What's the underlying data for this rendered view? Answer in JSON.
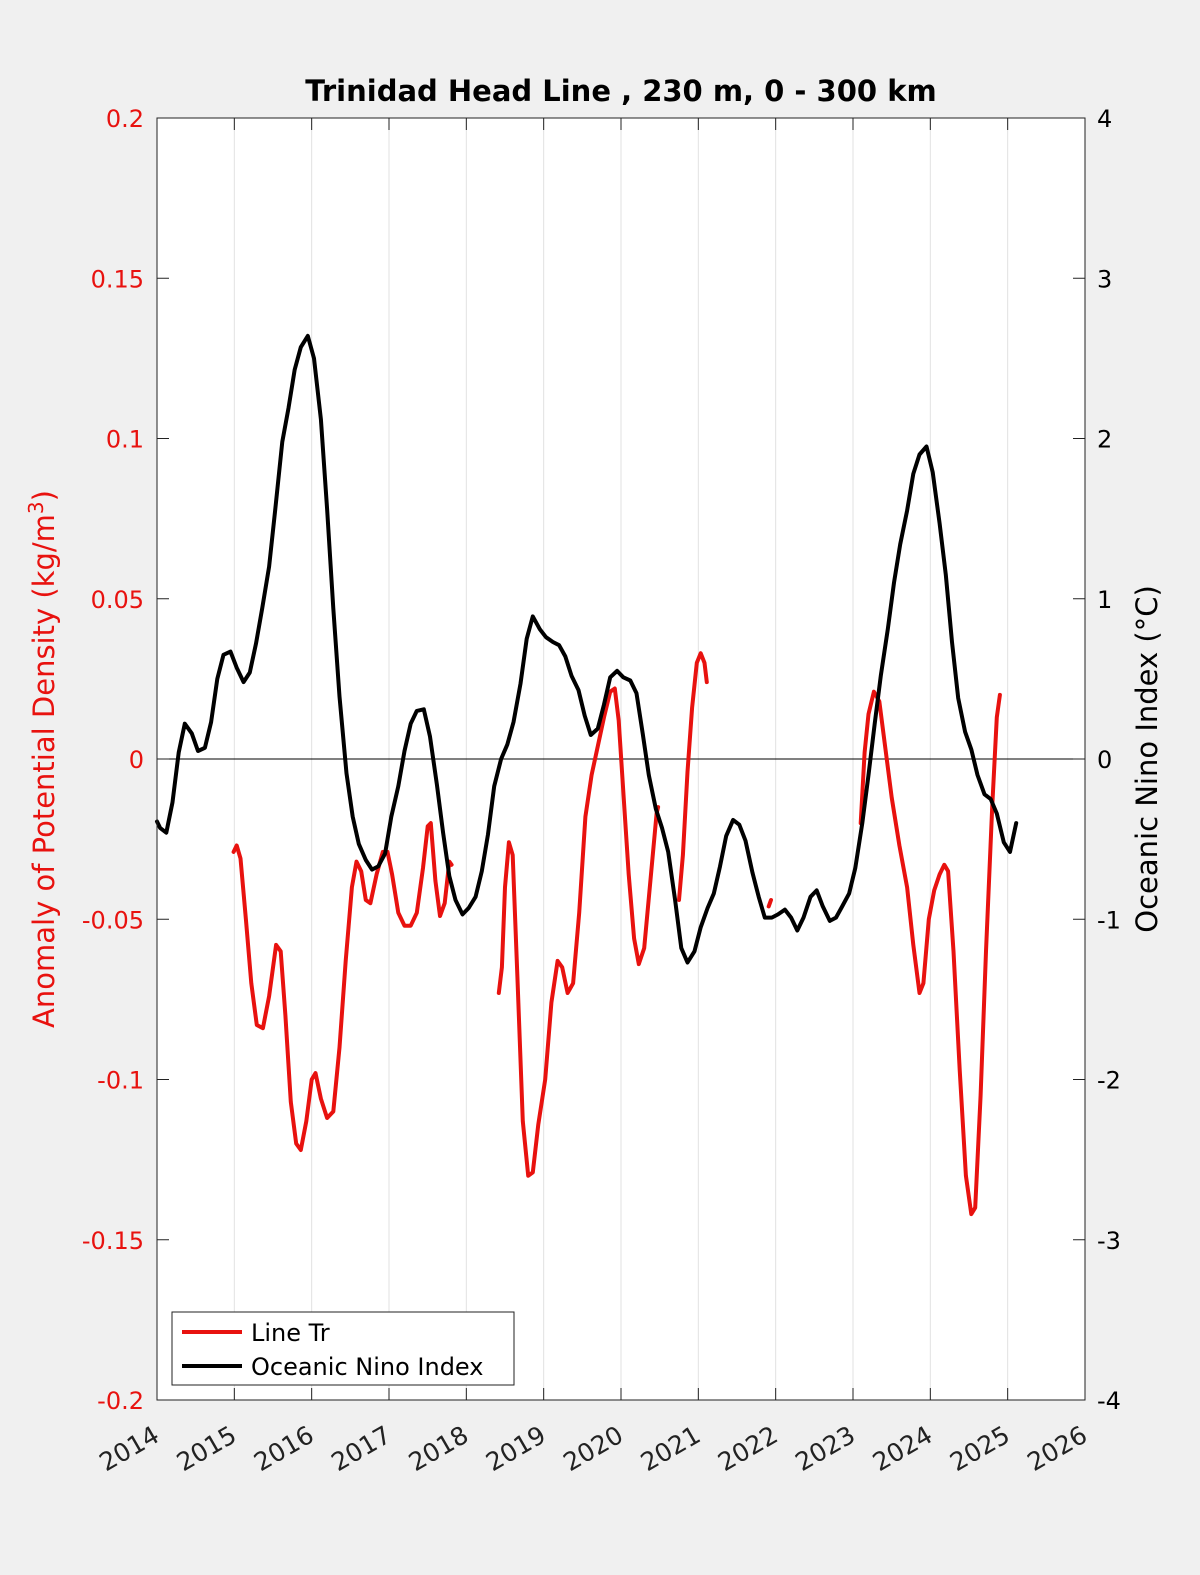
{
  "chart_data": {
    "type": "line",
    "title": "Trinidad Head Line , 230 m, 0 - 300 km",
    "xlabel": "",
    "ylabel_left": "Anomaly of Potential Density (kg/m",
    "ylabel_left_sup": "3",
    "ylabel_left_close": ")",
    "ylabel_right": "Oceanic Nino Index (°C)",
    "xlim": [
      2014,
      2026
    ],
    "ylim_left": [
      -0.2,
      0.2
    ],
    "ylim_right": [
      -4,
      4
    ],
    "x_ticks": [
      2014,
      2015,
      2016,
      2017,
      2018,
      2019,
      2020,
      2021,
      2022,
      2023,
      2024,
      2025,
      2026
    ],
    "x_tick_labels": [
      "2014",
      "2015",
      "2016",
      "2017",
      "2018",
      "2019",
      "2020",
      "2021",
      "2022",
      "2023",
      "2024",
      "2025",
      "2026"
    ],
    "y_left_ticks": [
      -0.2,
      -0.15,
      -0.1,
      -0.05,
      0,
      0.05,
      0.1,
      0.15,
      0.2
    ],
    "y_left_tick_labels": [
      "-0.2",
      "-0.15",
      "-0.1",
      "-0.05",
      "0",
      "0.05",
      "0.1",
      "0.15",
      "0.2"
    ],
    "y_right_ticks": [
      -4,
      -3,
      -2,
      -1,
      0,
      1,
      2,
      3,
      4
    ],
    "y_right_tick_labels": [
      "-4",
      "-3",
      "-2",
      "-1",
      "0",
      "1",
      "2",
      "3",
      "4"
    ],
    "grid": "vertical",
    "legend_position": "bottom-left",
    "colors": {
      "line_tr": "#e8120f",
      "oni": "#000000",
      "left_axis": "#e8120f",
      "right_axis": "#000000"
    },
    "series": [
      {
        "name": "Line Tr",
        "axis": "left",
        "segments": [
          [
            [
              2014.99,
              -0.029
            ],
            [
              2015.03,
              -0.027
            ],
            [
              2015.08,
              -0.031
            ],
            [
              2015.15,
              -0.05
            ],
            [
              2015.22,
              -0.07
            ],
            [
              2015.29,
              -0.083
            ],
            [
              2015.37,
              -0.084
            ],
            [
              2015.45,
              -0.074
            ],
            [
              2015.54,
              -0.058
            ],
            [
              2015.6,
              -0.06
            ],
            [
              2015.66,
              -0.08
            ],
            [
              2015.73,
              -0.107
            ],
            [
              2015.8,
              -0.12
            ],
            [
              2015.86,
              -0.122
            ],
            [
              2015.93,
              -0.113
            ],
            [
              2016.0,
              -0.1
            ],
            [
              2016.05,
              -0.098
            ],
            [
              2016.12,
              -0.106
            ],
            [
              2016.2,
              -0.112
            ],
            [
              2016.28,
              -0.11
            ],
            [
              2016.36,
              -0.09
            ],
            [
              2016.44,
              -0.063
            ],
            [
              2016.52,
              -0.04
            ],
            [
              2016.58,
              -0.032
            ],
            [
              2016.64,
              -0.035
            ],
            [
              2016.7,
              -0.044
            ],
            [
              2016.76,
              -0.045
            ],
            [
              2016.84,
              -0.036
            ],
            [
              2016.92,
              -0.029
            ],
            [
              2016.98,
              -0.029
            ],
            [
              2017.04,
              -0.036
            ],
            [
              2017.12,
              -0.048
            ],
            [
              2017.2,
              -0.052
            ],
            [
              2017.28,
              -0.052
            ],
            [
              2017.36,
              -0.048
            ],
            [
              2017.44,
              -0.034
            ],
            [
              2017.5,
              -0.021
            ],
            [
              2017.54,
              -0.02
            ],
            [
              2017.6,
              -0.038
            ],
            [
              2017.66,
              -0.049
            ],
            [
              2017.72,
              -0.045
            ],
            [
              2017.78,
              -0.032
            ],
            [
              2017.81,
              -0.033
            ]
          ],
          [
            [
              2018.42,
              -0.073
            ],
            [
              2018.46,
              -0.065
            ],
            [
              2018.5,
              -0.04
            ],
            [
              2018.55,
              -0.026
            ],
            [
              2018.6,
              -0.03
            ],
            [
              2018.66,
              -0.068
            ],
            [
              2018.73,
              -0.113
            ],
            [
              2018.8,
              -0.13
            ],
            [
              2018.86,
              -0.129
            ],
            [
              2018.93,
              -0.114
            ],
            [
              2019.02,
              -0.1
            ],
            [
              2019.1,
              -0.076
            ],
            [
              2019.18,
              -0.063
            ],
            [
              2019.24,
              -0.065
            ],
            [
              2019.31,
              -0.073
            ],
            [
              2019.38,
              -0.07
            ],
            [
              2019.46,
              -0.048
            ],
            [
              2019.54,
              -0.018
            ],
            [
              2019.62,
              -0.005
            ],
            [
              2019.7,
              0.004
            ],
            [
              2019.78,
              0.013
            ],
            [
              2019.86,
              0.021
            ],
            [
              2019.92,
              0.022
            ],
            [
              2019.97,
              0.012
            ],
            [
              2020.04,
              -0.014
            ],
            [
              2020.1,
              -0.036
            ],
            [
              2020.17,
              -0.056
            ],
            [
              2020.23,
              -0.064
            ],
            [
              2020.3,
              -0.059
            ],
            [
              2020.38,
              -0.038
            ],
            [
              2020.46,
              -0.017
            ],
            [
              2020.48,
              -0.015
            ]
          ],
          [
            [
              2020.75,
              -0.044
            ],
            [
              2020.8,
              -0.03
            ],
            [
              2020.86,
              -0.004
            ],
            [
              2020.92,
              0.016
            ],
            [
              2020.98,
              0.03
            ],
            [
              2021.03,
              0.033
            ],
            [
              2021.08,
              0.03
            ],
            [
              2021.11,
              0.024
            ]
          ],
          [
            [
              2021.91,
              -0.046
            ],
            [
              2021.94,
              -0.044
            ]
          ],
          [
            [
              2023.1,
              -0.02
            ],
            [
              2023.15,
              0.002
            ],
            [
              2023.2,
              0.014
            ],
            [
              2023.27,
              0.021
            ],
            [
              2023.34,
              0.018
            ],
            [
              2023.42,
              0.003
            ],
            [
              2023.5,
              -0.012
            ],
            [
              2023.6,
              -0.027
            ],
            [
              2023.7,
              -0.04
            ],
            [
              2023.78,
              -0.058
            ],
            [
              2023.86,
              -0.073
            ],
            [
              2023.91,
              -0.07
            ],
            [
              2023.98,
              -0.05
            ],
            [
              2024.05,
              -0.041
            ],
            [
              2024.12,
              -0.036
            ],
            [
              2024.18,
              -0.033
            ],
            [
              2024.23,
              -0.035
            ],
            [
              2024.3,
              -0.06
            ],
            [
              2024.38,
              -0.097
            ],
            [
              2024.46,
              -0.13
            ],
            [
              2024.53,
              -0.142
            ],
            [
              2024.58,
              -0.14
            ],
            [
              2024.65,
              -0.105
            ],
            [
              2024.72,
              -0.06
            ],
            [
              2024.8,
              -0.015
            ],
            [
              2024.86,
              0.013
            ],
            [
              2024.9,
              0.02
            ]
          ]
        ]
      },
      {
        "name": "Oceanic Nino Index",
        "axis": "right",
        "points": [
          [
            2014.0,
            -0.39
          ],
          [
            2014.04,
            -0.43
          ],
          [
            2014.12,
            -0.46
          ],
          [
            2014.2,
            -0.27
          ],
          [
            2014.28,
            0.04
          ],
          [
            2014.36,
            0.22
          ],
          [
            2014.45,
            0.16
          ],
          [
            2014.53,
            0.05
          ],
          [
            2014.62,
            0.07
          ],
          [
            2014.7,
            0.23
          ],
          [
            2014.78,
            0.5
          ],
          [
            2014.86,
            0.65
          ],
          [
            2014.95,
            0.67
          ],
          [
            2015.03,
            0.57
          ],
          [
            2015.12,
            0.48
          ],
          [
            2015.2,
            0.54
          ],
          [
            2015.28,
            0.72
          ],
          [
            2015.36,
            0.94
          ],
          [
            2015.45,
            1.2
          ],
          [
            2015.53,
            1.56
          ],
          [
            2015.62,
            1.98
          ],
          [
            2015.7,
            2.19
          ],
          [
            2015.78,
            2.43
          ],
          [
            2015.86,
            2.57
          ],
          [
            2015.95,
            2.64
          ],
          [
            2016.03,
            2.5
          ],
          [
            2016.12,
            2.12
          ],
          [
            2016.2,
            1.56
          ],
          [
            2016.28,
            0.94
          ],
          [
            2016.36,
            0.39
          ],
          [
            2016.45,
            -0.09
          ],
          [
            2016.53,
            -0.36
          ],
          [
            2016.61,
            -0.53
          ],
          [
            2016.7,
            -0.63
          ],
          [
            2016.78,
            -0.69
          ],
          [
            2016.86,
            -0.67
          ],
          [
            2016.95,
            -0.59
          ],
          [
            2017.03,
            -0.36
          ],
          [
            2017.12,
            -0.17
          ],
          [
            2017.2,
            0.05
          ],
          [
            2017.28,
            0.22
          ],
          [
            2017.36,
            0.3
          ],
          [
            2017.45,
            0.31
          ],
          [
            2017.53,
            0.14
          ],
          [
            2017.62,
            -0.16
          ],
          [
            2017.7,
            -0.46
          ],
          [
            2017.78,
            -0.73
          ],
          [
            2017.86,
            -0.88
          ],
          [
            2017.95,
            -0.97
          ],
          [
            2018.03,
            -0.93
          ],
          [
            2018.12,
            -0.86
          ],
          [
            2018.2,
            -0.7
          ],
          [
            2018.28,
            -0.47
          ],
          [
            2018.36,
            -0.17
          ],
          [
            2018.45,
            0.0
          ],
          [
            2018.53,
            0.09
          ],
          [
            2018.61,
            0.23
          ],
          [
            2018.7,
            0.47
          ],
          [
            2018.78,
            0.75
          ],
          [
            2018.86,
            0.89
          ],
          [
            2018.95,
            0.81
          ],
          [
            2019.03,
            0.76
          ],
          [
            2019.12,
            0.73
          ],
          [
            2019.2,
            0.71
          ],
          [
            2019.28,
            0.64
          ],
          [
            2019.36,
            0.52
          ],
          [
            2019.45,
            0.43
          ],
          [
            2019.53,
            0.27
          ],
          [
            2019.61,
            0.15
          ],
          [
            2019.7,
            0.19
          ],
          [
            2019.78,
            0.34
          ],
          [
            2019.86,
            0.51
          ],
          [
            2019.95,
            0.55
          ],
          [
            2020.03,
            0.51
          ],
          [
            2020.12,
            0.49
          ],
          [
            2020.2,
            0.41
          ],
          [
            2020.28,
            0.16
          ],
          [
            2020.36,
            -0.1
          ],
          [
            2020.45,
            -0.31
          ],
          [
            2020.53,
            -0.43
          ],
          [
            2020.61,
            -0.58
          ],
          [
            2020.7,
            -0.88
          ],
          [
            2020.78,
            -1.18
          ],
          [
            2020.86,
            -1.27
          ],
          [
            2020.95,
            -1.2
          ],
          [
            2021.03,
            -1.05
          ],
          [
            2021.12,
            -0.93
          ],
          [
            2021.2,
            -0.84
          ],
          [
            2021.28,
            -0.67
          ],
          [
            2021.36,
            -0.48
          ],
          [
            2021.45,
            -0.38
          ],
          [
            2021.53,
            -0.41
          ],
          [
            2021.61,
            -0.51
          ],
          [
            2021.7,
            -0.71
          ],
          [
            2021.78,
            -0.86
          ],
          [
            2021.86,
            -0.99
          ],
          [
            2021.95,
            -0.99
          ],
          [
            2022.03,
            -0.97
          ],
          [
            2022.12,
            -0.94
          ],
          [
            2022.2,
            -0.99
          ],
          [
            2022.28,
            -1.07
          ],
          [
            2022.36,
            -0.99
          ],
          [
            2022.45,
            -0.86
          ],
          [
            2022.53,
            -0.82
          ],
          [
            2022.61,
            -0.92
          ],
          [
            2022.7,
            -1.01
          ],
          [
            2022.78,
            -0.99
          ],
          [
            2022.86,
            -0.92
          ],
          [
            2022.95,
            -0.84
          ],
          [
            2023.03,
            -0.68
          ],
          [
            2023.12,
            -0.4
          ],
          [
            2023.2,
            -0.1
          ],
          [
            2023.28,
            0.22
          ],
          [
            2023.36,
            0.52
          ],
          [
            2023.45,
            0.81
          ],
          [
            2023.53,
            1.1
          ],
          [
            2023.61,
            1.34
          ],
          [
            2023.7,
            1.55
          ],
          [
            2023.78,
            1.78
          ],
          [
            2023.86,
            1.9
          ],
          [
            2023.95,
            1.95
          ],
          [
            2024.03,
            1.79
          ],
          [
            2024.12,
            1.47
          ],
          [
            2024.2,
            1.15
          ],
          [
            2024.28,
            0.73
          ],
          [
            2024.36,
            0.38
          ],
          [
            2024.45,
            0.17
          ],
          [
            2024.53,
            0.06
          ],
          [
            2024.61,
            -0.1
          ],
          [
            2024.7,
            -0.22
          ],
          [
            2024.78,
            -0.25
          ],
          [
            2024.86,
            -0.34
          ],
          [
            2024.95,
            -0.52
          ],
          [
            2025.03,
            -0.58
          ],
          [
            2025.11,
            -0.4
          ]
        ]
      }
    ]
  }
}
